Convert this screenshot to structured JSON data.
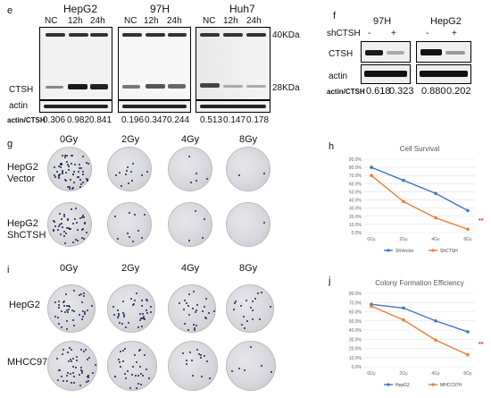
{
  "panel_e": {
    "letter": "e",
    "groups": [
      {
        "name": "HepG2",
        "lanes": [
          "NC",
          "12h",
          "24h"
        ],
        "ratios": [
          "0.306",
          "0.982",
          "0.841"
        ]
      },
      {
        "name": "97H",
        "lanes": [
          "NC",
          "12h",
          "24h"
        ],
        "ratios": [
          "0.196",
          "0.347",
          "0.244"
        ]
      },
      {
        "name": "Huh7",
        "lanes": [
          "NC",
          "12h",
          "24h"
        ],
        "ratios": [
          "0.513",
          "0.147",
          "0.178"
        ]
      }
    ],
    "row_ctsh": "CTSH",
    "row_actin": "actin",
    "ratio_label": "actin/CTSH",
    "marker_40": "40KDa",
    "marker_28": "28KDa"
  },
  "panel_f": {
    "letter": "f",
    "groups": [
      {
        "name": "97H",
        "lanes": [
          "-",
          "+"
        ],
        "ratios": [
          "0.618",
          "0.323"
        ]
      },
      {
        "name": "HepG2",
        "lanes": [
          "-",
          "+"
        ],
        "ratios": [
          "0.880",
          "0.202"
        ]
      }
    ],
    "treatment": "shCTSH",
    "row_ctsh": "CTSH",
    "row_actin": "actin",
    "ratio_label": "actin/CTSH"
  },
  "panel_g": {
    "letter": "g",
    "doses": [
      "0Gy",
      "2Gy",
      "4Gy",
      "8Gy"
    ],
    "rows": [
      {
        "label_line1": "HepG2",
        "label_line2": "Vector"
      },
      {
        "label_line1": "HepG2",
        "label_line2": "ShCTSH"
      }
    ]
  },
  "panel_i": {
    "letter": "i",
    "doses": [
      "0Gy",
      "2Gy",
      "4Gy",
      "8Gy"
    ],
    "rows": [
      {
        "label_line1": "HepG2",
        "label_line2": ""
      },
      {
        "label_line1": "MHCC97H",
        "label_line2": ""
      }
    ]
  },
  "colors": {
    "blue": "#4472c4",
    "orange": "#ed7d31",
    "sig": "#e03030"
  },
  "chart_data": [
    {
      "type": "line",
      "panel": "h",
      "title": "Cell Survival",
      "categories": [
        "0Gy",
        "2Gy",
        "4Gy",
        "8Gy"
      ],
      "yticks": [
        "90.0%",
        "80.0%",
        "70.0%",
        "60.0%",
        "50.0%",
        "40.0%",
        "30.0%",
        "20.0%",
        "10.0%",
        "0.0%"
      ],
      "ylim": [
        0,
        90
      ],
      "series": [
        {
          "name": "ShVector",
          "values": [
            80,
            64,
            48,
            27
          ]
        },
        {
          "name": "ShCTSH",
          "values": [
            70,
            38,
            18,
            4
          ]
        }
      ],
      "annotation": "**",
      "legend": "bottom",
      "grid": true
    },
    {
      "type": "line",
      "panel": "j",
      "title": "Colony Formation Efficiency",
      "categories": [
        "0Gy",
        "2Gy",
        "4Gy",
        "8Gy"
      ],
      "yticks": [
        "80.0%",
        "70.0%",
        "60.0%",
        "50.0%",
        "40.0%",
        "30.0%",
        "20.0%",
        "10.0%",
        "0.0%"
      ],
      "ylim": [
        0,
        80
      ],
      "series": [
        {
          "name": "HepG2",
          "values": [
            68,
            64,
            50,
            38
          ]
        },
        {
          "name": "MHCC97H",
          "values": [
            66,
            51,
            29,
            13
          ]
        }
      ],
      "annotation": "**",
      "legend": "bottom",
      "grid": true
    }
  ]
}
